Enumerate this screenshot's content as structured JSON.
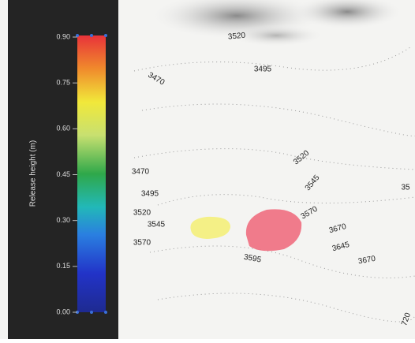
{
  "legend": {
    "label": "Release height (m)",
    "ticks": [
      "0.90",
      "0.75",
      "0.60",
      "0.45",
      "0.30",
      "0.15",
      "0.00"
    ]
  },
  "contour_labels": [
    "3520",
    "3495",
    "3470",
    "3470",
    "3495",
    "3520",
    "3545",
    "3570",
    "3520",
    "3545",
    "3570",
    "3670",
    "3645",
    "3670",
    "3595",
    "35",
    "720"
  ]
}
